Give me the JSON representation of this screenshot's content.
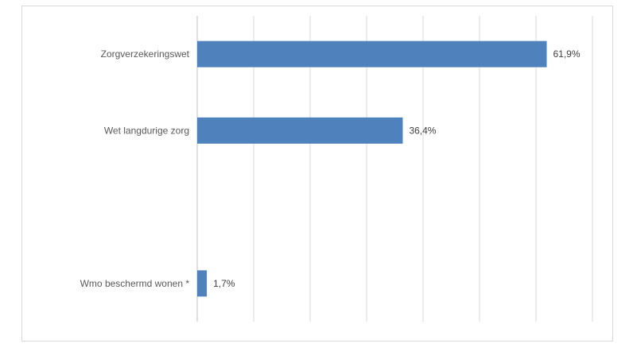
{
  "chart_data": {
    "type": "bar",
    "orientation": "horizontal",
    "categories": [
      "Zorgverzekeringswet",
      "Wet langdurige zorg",
      "",
      "Wmo beschermd wonen *"
    ],
    "values": [
      61.9,
      36.4,
      null,
      1.7
    ],
    "value_labels": [
      "61,9%",
      "36,4%",
      "",
      "1,7%"
    ],
    "xlim": [
      0,
      70
    ],
    "grid": true,
    "legend": false,
    "bar_color": "#4f81bd"
  }
}
